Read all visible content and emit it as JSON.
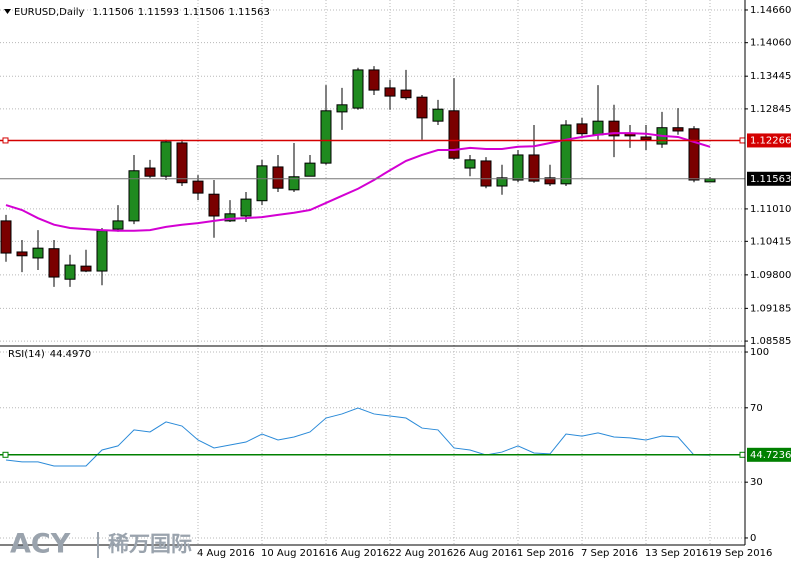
{
  "chart_data": [
    {
      "type": "candlestick",
      "title": "EURUSD,Daily",
      "categories": [
        null,
        null,
        null,
        null,
        null,
        null,
        null,
        null,
        null,
        null,
        null,
        null,
        "4 Aug 2016",
        null,
        null,
        null,
        "10 Aug 2016",
        null,
        null,
        null,
        "16 Aug 2016",
        null,
        null,
        null,
        "22 Aug 2016",
        null,
        null,
        null,
        "26 Aug 2016",
        null,
        null,
        null,
        "1 Sep 2016",
        null,
        null,
        null,
        "7 Sep 2016",
        null,
        null,
        null,
        "13 Sep 2016",
        null,
        null,
        null,
        "19 Sep 2016"
      ],
      "open": [
        1.1079,
        1.1022,
        1.1011,
        1.1028,
        1.0972,
        1.0996,
        1.0987,
        1.1064,
        1.1079,
        1.1176,
        1.1161,
        1.1222,
        1.1152,
        1.1128,
        1.1079,
        1.1088,
        1.1116,
        1.1178,
        1.1136,
        1.1161,
        1.1185,
        1.1279,
        1.1286,
        1.1356,
        1.1323,
        1.1319,
        1.1306,
        1.1262,
        1.1281,
        1.1176,
        1.1189,
        1.1143,
        1.1154,
        1.12,
        1.1158,
        1.1147,
        1.1257,
        1.1237,
        1.1262,
        1.124,
        1.1233,
        1.122,
        1.125,
        1.1248,
        1.11506
      ],
      "high": [
        1.109,
        1.1044,
        1.1062,
        1.1044,
        1.1017,
        1.1026,
        1.1066,
        1.1108,
        1.12,
        1.1191,
        1.1228,
        1.1228,
        1.1163,
        1.1154,
        1.1117,
        1.1132,
        1.1191,
        1.12,
        1.1222,
        1.12,
        1.1328,
        1.1323,
        1.136,
        1.1363,
        1.1338,
        1.1356,
        1.131,
        1.1301,
        1.1341,
        1.12,
        1.1196,
        1.1182,
        1.1209,
        1.1255,
        1.1182,
        1.1264,
        1.1268,
        1.1328,
        1.1292,
        1.1255,
        1.1255,
        1.1279,
        1.1286,
        1.1253,
        1.11593
      ],
      "low": [
        1.1004,
        1.0985,
        1.0989,
        1.0958,
        1.0958,
        1.0985,
        1.0961,
        1.1059,
        1.1073,
        1.1158,
        1.1154,
        1.1143,
        1.1117,
        1.1048,
        1.1077,
        1.1077,
        1.1108,
        1.1132,
        1.1132,
        1.1161,
        1.1182,
        1.1246,
        1.1283,
        1.131,
        1.1283,
        1.1301,
        1.1228,
        1.1255,
        1.1191,
        1.1161,
        1.1139,
        1.1127,
        1.115,
        1.1149,
        1.1143,
        1.1143,
        1.1231,
        1.1228,
        1.1196,
        1.1213,
        1.1209,
        1.1213,
        1.1237,
        1.115,
        1.11506
      ],
      "close": [
        1.102,
        1.1015,
        1.1029,
        1.0976,
        1.0998,
        1.0987,
        1.1061,
        1.1079,
        1.1171,
        1.1161,
        1.1224,
        1.1149,
        1.113,
        1.1088,
        1.1092,
        1.1119,
        1.118,
        1.1139,
        1.116,
        1.1185,
        1.1281,
        1.1292,
        1.1356,
        1.1319,
        1.1308,
        1.1305,
        1.1268,
        1.1284,
        1.1194,
        1.1191,
        1.1143,
        1.1158,
        1.12,
        1.1152,
        1.1147,
        1.1255,
        1.1239,
        1.1262,
        1.1235,
        1.1235,
        1.1228,
        1.125,
        1.1244,
        1.1154,
        1.11563
      ],
      "up_color": "#1f8a1f",
      "down_color": "#7a0000",
      "ma": {
        "color": "#d300d3",
        "values": [
          1.1108,
          1.1099,
          1.1084,
          1.1072,
          1.1066,
          1.1064,
          1.1062,
          1.1061,
          1.1061,
          1.1062,
          1.1068,
          1.1072,
          1.1075,
          1.1079,
          1.1083,
          1.1084,
          1.1086,
          1.109,
          1.1094,
          1.1099,
          1.1112,
          1.1125,
          1.1138,
          1.1154,
          1.1172,
          1.1189,
          1.12,
          1.1209,
          1.1209,
          1.1213,
          1.1211,
          1.1211,
          1.1215,
          1.1216,
          1.1222,
          1.1228,
          1.1233,
          1.1237,
          1.124,
          1.124,
          1.1239,
          1.1235,
          1.1233,
          1.1224,
          1.1215
        ]
      },
      "ylim": [
        1.08513,
        1.14843
      ],
      "yticks": [
        {
          "value": 1.1466,
          "label": "1.14660"
        },
        {
          "value": 1.1406,
          "label": "1.14060"
        },
        {
          "value": 1.13445,
          "label": "1.13445"
        },
        {
          "value": 1.12845,
          "label": "1.12845"
        },
        {
          "value": 1.1101,
          "label": "1.11010"
        },
        {
          "value": 1.10415,
          "label": "1.10415"
        },
        {
          "value": 1.098,
          "label": "1.09800"
        },
        {
          "value": 1.09185,
          "label": "1.09185"
        },
        {
          "value": 1.08585,
          "label": "1.08585"
        }
      ],
      "levels": [
        {
          "value": 1.12266,
          "color": "#d40000"
        }
      ],
      "grid": true
    },
    {
      "type": "line",
      "title": "RSI(14)",
      "values": [
        41.9,
        40.9,
        40.9,
        38.7,
        38.7,
        38.7,
        47.3,
        49.5,
        58.1,
        57.0,
        62.4,
        60.2,
        52.7,
        48.4,
        50.0,
        51.6,
        55.9,
        52.7,
        54.3,
        57.0,
        64.5,
        66.7,
        69.9,
        66.7,
        65.6,
        64.5,
        59.1,
        58.1,
        48.4,
        47.3,
        44.6,
        46.2,
        49.5,
        45.7,
        45.2,
        55.9,
        54.8,
        56.5,
        54.3,
        53.8,
        52.7,
        54.8,
        54.3,
        44.6,
        44.497
      ],
      "value_labels": [
        null,
        null,
        null,
        null,
        null,
        null,
        null,
        null,
        null,
        null,
        null,
        null,
        null,
        null,
        null,
        null,
        null,
        null,
        null,
        null,
        null,
        null,
        null,
        null,
        null,
        null,
        null,
        null,
        null,
        null,
        null,
        null,
        null,
        null,
        null,
        null,
        null,
        null,
        null,
        null,
        null,
        null,
        null,
        null,
        "44.4970"
      ],
      "color": "#2a8ad8",
      "ylim": [
        -5.4,
        102.7
      ],
      "yticks": [
        0,
        30,
        70,
        100
      ],
      "levels": [
        {
          "value": 44.7236,
          "color": "#008000"
        }
      ],
      "grid": true
    }
  ],
  "watermark": {
    "brand": "ACY",
    "name": "稀万国际"
  }
}
